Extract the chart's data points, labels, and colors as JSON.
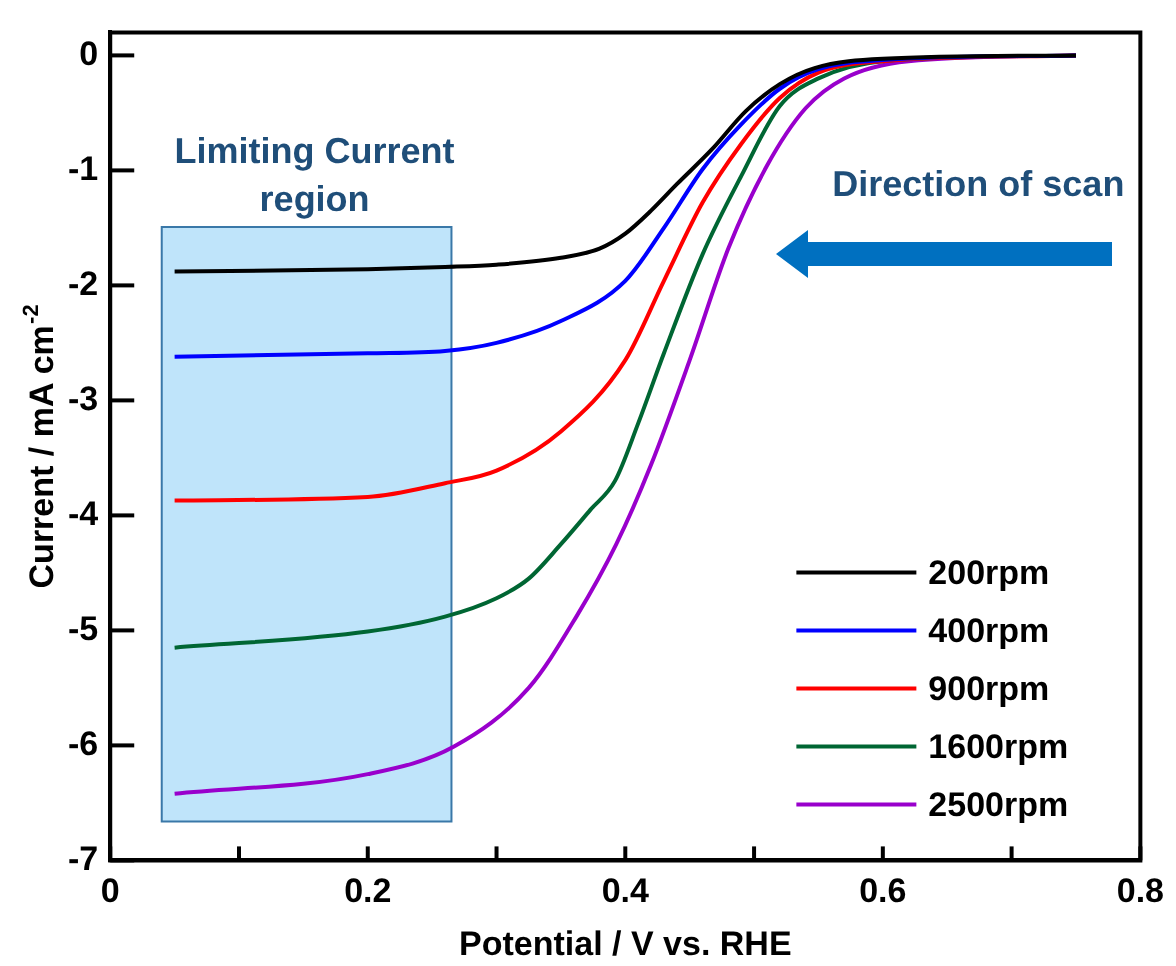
{
  "chart_data": {
    "type": "line",
    "xlabel": "Potential / V vs. RHE",
    "ylabel": "Current / mA cm$^{-2}$",
    "xlim": [
      0,
      0.8
    ],
    "ylim": [
      -7,
      0.2
    ],
    "xticks": [
      0,
      {
        "value": 0.1,
        "label": null
      },
      0.2,
      {
        "value": 0.3,
        "label": null
      },
      0.4,
      {
        "value": 0.5,
        "label": null
      },
      0.6,
      {
        "value": 0.7,
        "label": null
      },
      0.8
    ],
    "yticks": [
      0,
      -1,
      -2,
      -3,
      -4,
      -5,
      -6,
      -7
    ],
    "grid": false,
    "legend": "bottom right",
    "marker": "none",
    "line_style": "solid",
    "bands": [
      {
        "axis": "x",
        "from": 0.04,
        "to": 0.265,
        "label": "Limiting Current region",
        "color": "#bfe4fa"
      }
    ],
    "annotations": [
      "Direction of scan"
    ],
    "series": [
      {
        "name": "200rpm",
        "color": "#000000",
        "x": [
          0.05,
          0.2,
          0.26,
          0.3,
          0.35,
          0.38,
          0.4,
          0.42,
          0.44,
          0.467,
          0.494,
          0.52,
          0.547,
          0.6,
          0.75
        ],
        "values": [
          -1.88,
          -1.86,
          -1.84,
          -1.82,
          -1.76,
          -1.68,
          -1.55,
          -1.35,
          -1.12,
          -0.82,
          -0.48,
          -0.25,
          -0.11,
          -0.03,
          0
        ]
      },
      {
        "name": "400rpm",
        "color": "#0000ff",
        "x": [
          0.05,
          0.2,
          0.26,
          0.3,
          0.35,
          0.4,
          0.43,
          0.46,
          0.49,
          0.52,
          0.55,
          0.6,
          0.75
        ],
        "values": [
          -2.62,
          -2.59,
          -2.57,
          -2.5,
          -2.31,
          -1.96,
          -1.5,
          -0.99,
          -0.6,
          -0.29,
          -0.12,
          -0.04,
          0
        ]
      },
      {
        "name": "900rpm",
        "color": "#ff0000",
        "x": [
          0.05,
          0.2,
          0.26,
          0.3,
          0.35,
          0.4,
          0.43,
          0.46,
          0.49,
          0.52,
          0.55,
          0.6,
          0.75
        ],
        "values": [
          -3.87,
          -3.84,
          -3.72,
          -3.61,
          -3.27,
          -2.65,
          -1.96,
          -1.28,
          -0.77,
          -0.37,
          -0.15,
          -0.05,
          0
        ]
      },
      {
        "name": "1600rpm",
        "color": "#006633",
        "x": [
          0.05,
          0.2,
          0.26,
          0.3,
          0.325,
          0.35,
          0.373,
          0.392,
          0.41,
          0.43,
          0.46,
          0.49,
          0.52,
          0.55,
          0.6,
          0.75
        ],
        "values": [
          -5.15,
          -5.01,
          -4.88,
          -4.72,
          -4.55,
          -4.25,
          -3.95,
          -3.7,
          -3.2,
          -2.59,
          -1.73,
          -1.05,
          -0.44,
          -0.2,
          -0.05,
          0
        ]
      },
      {
        "name": "2500rpm",
        "color": "#9900cc",
        "x": [
          0.05,
          0.2,
          0.267,
          0.325,
          0.362,
          0.393,
          0.42,
          0.45,
          0.48,
          0.51,
          0.54,
          0.57,
          0.62,
          0.75
        ],
        "values": [
          -6.42,
          -6.25,
          -6.01,
          -5.5,
          -4.88,
          -4.25,
          -3.56,
          -2.65,
          -1.68,
          -0.96,
          -0.46,
          -0.2,
          -0.05,
          0
        ]
      }
    ]
  }
}
